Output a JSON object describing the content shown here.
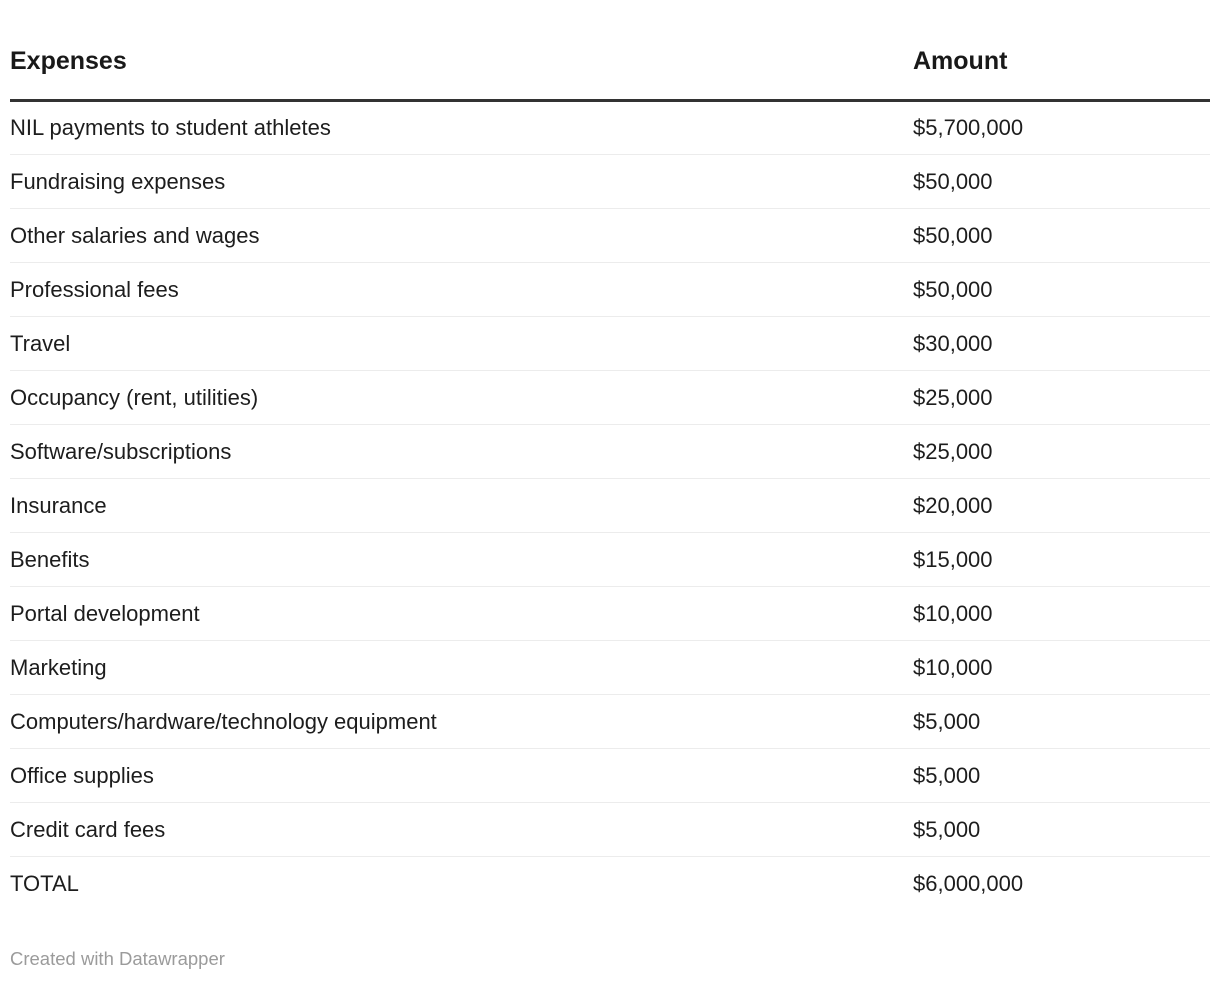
{
  "header": {
    "expenses_label": "Expenses",
    "amount_label": "Amount"
  },
  "rows": [
    {
      "expense": "NIL payments to student athletes",
      "amount": "$5,700,000"
    },
    {
      "expense": "Fundraising expenses",
      "amount": "$50,000"
    },
    {
      "expense": "Other salaries and wages",
      "amount": "$50,000"
    },
    {
      "expense": "Professional fees",
      "amount": "$50,000"
    },
    {
      "expense": "Travel",
      "amount": "$30,000"
    },
    {
      "expense": "Occupancy (rent, utilities)",
      "amount": "$25,000"
    },
    {
      "expense": "Software/subscriptions",
      "amount": "$25,000"
    },
    {
      "expense": "Insurance",
      "amount": "$20,000"
    },
    {
      "expense": "Benefits",
      "amount": "$15,000"
    },
    {
      "expense": "Portal development",
      "amount": "$10,000"
    },
    {
      "expense": "Marketing",
      "amount": "$10,000"
    },
    {
      "expense": "Computers/hardware/technology equipment",
      "amount": "$5,000"
    },
    {
      "expense": "Office supplies",
      "amount": "$5,000"
    },
    {
      "expense": "Credit card fees",
      "amount": "$5,000"
    },
    {
      "expense": "TOTAL",
      "amount": "$6,000,000"
    }
  ],
  "footer": {
    "attribution": "Created with Datawrapper"
  },
  "colors": {
    "header_rule": "#333333",
    "row_separator": "#ececec",
    "body_text": "#1d1d1d",
    "footer_text": "#9b9b9b",
    "background": "#ffffff"
  },
  "chart_data": {
    "type": "table",
    "title": "",
    "columns": [
      "Expenses",
      "Amount"
    ],
    "rows": [
      [
        "NIL payments to student athletes",
        5700000
      ],
      [
        "Fundraising expenses",
        50000
      ],
      [
        "Other salaries and wages",
        50000
      ],
      [
        "Professional fees",
        50000
      ],
      [
        "Travel",
        30000
      ],
      [
        "Occupancy (rent, utilities)",
        25000
      ],
      [
        "Software/subscriptions",
        25000
      ],
      [
        "Insurance",
        20000
      ],
      [
        "Benefits",
        15000
      ],
      [
        "Portal development",
        10000
      ],
      [
        "Marketing",
        10000
      ],
      [
        "Computers/hardware/technology equipment",
        5000
      ],
      [
        "Office supplies",
        5000
      ],
      [
        "Credit card fees",
        5000
      ],
      [
        "TOTAL",
        6000000
      ]
    ],
    "value_format": "$#,##0",
    "attribution": "Created with Datawrapper"
  }
}
